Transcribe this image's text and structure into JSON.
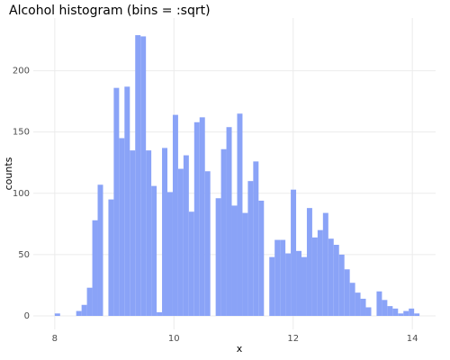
{
  "chart_data": {
    "type": "histogram",
    "title": "Alcohol histogram (bins = :sqrt)",
    "xlabel": "x",
    "ylabel": "counts",
    "color": "#8aa3f7",
    "bins": [
      8.0,
      8.09,
      8.18,
      8.27,
      8.36,
      8.45,
      8.54,
      8.63,
      8.72,
      8.81,
      8.9,
      8.99,
      9.08,
      9.17,
      9.26,
      9.35,
      9.44,
      9.53,
      9.62,
      9.71,
      9.8,
      9.89,
      9.98,
      10.07,
      10.16,
      10.25,
      10.34,
      10.43,
      10.52,
      10.61,
      10.7,
      10.79,
      10.88,
      10.97,
      11.06,
      11.15,
      11.24,
      11.33,
      11.42,
      11.51,
      11.6,
      11.69,
      11.78,
      11.87,
      11.96,
      12.05,
      12.14,
      12.23,
      12.32,
      12.41,
      12.5,
      12.59,
      12.68,
      12.77,
      12.86,
      12.95,
      13.04,
      13.13,
      13.22,
      13.31,
      13.4,
      13.49,
      13.58,
      13.67,
      13.76,
      13.85,
      13.94,
      14.03,
      14.12,
      14.21
    ],
    "values": [
      2,
      0,
      0,
      0,
      4,
      9,
      23,
      78,
      107,
      0,
      95,
      186,
      145,
      187,
      135,
      229,
      228,
      135,
      106,
      3,
      137,
      101,
      164,
      120,
      131,
      85,
      158,
      162,
      118,
      0,
      96,
      136,
      154,
      90,
      165,
      84,
      110,
      126,
      94,
      0,
      48,
      62,
      62,
      51,
      103,
      53,
      48,
      88,
      64,
      70,
      84,
      63,
      58,
      50,
      38,
      27,
      19,
      14,
      7,
      0,
      20,
      13,
      8,
      6,
      2,
      4,
      6,
      2,
      0
    ],
    "xlim": [
      7.64,
      14.39
    ],
    "ylim": [
      -11,
      243
    ],
    "xticks": [
      8,
      10,
      12,
      14
    ],
    "yticks": [
      0,
      50,
      100,
      150,
      200
    ],
    "grid": true
  }
}
